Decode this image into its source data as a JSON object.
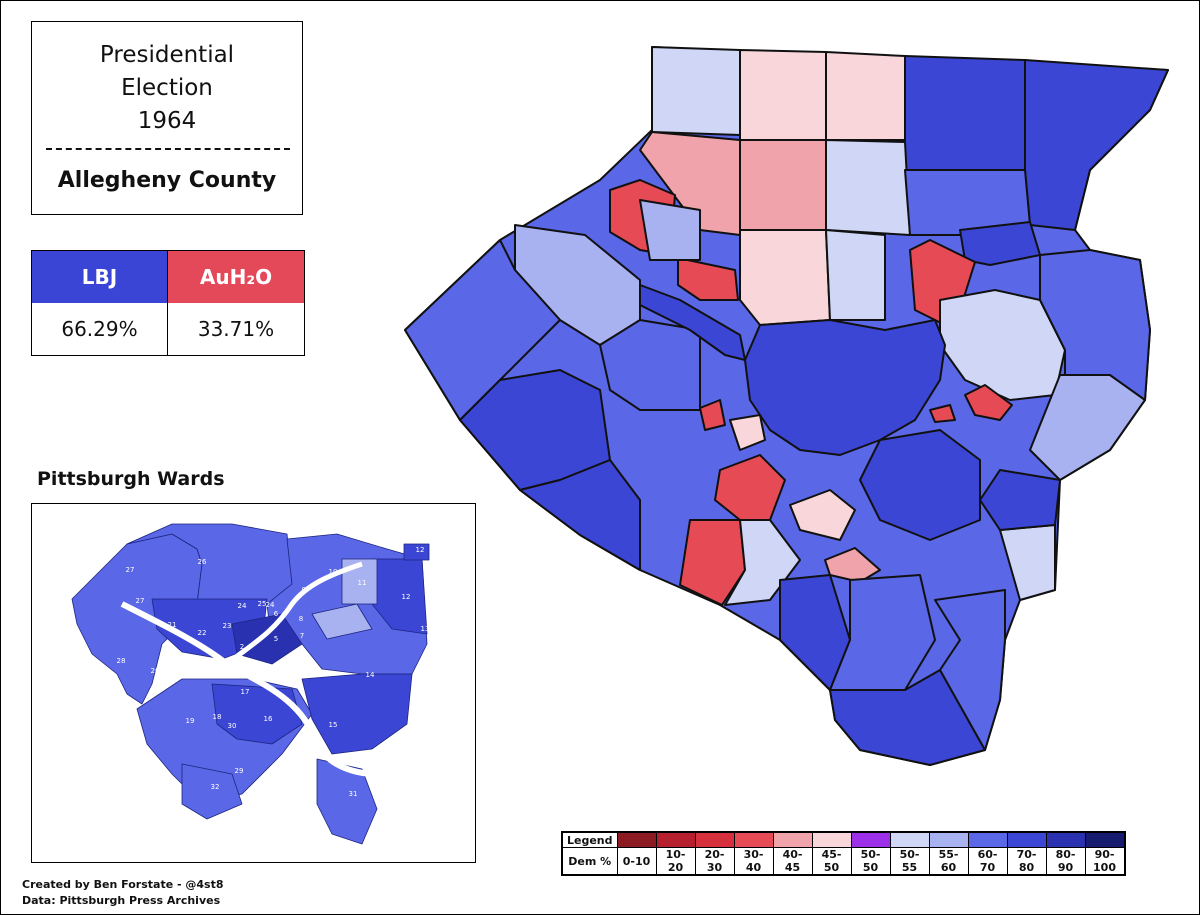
{
  "title": {
    "line1": "Presidential",
    "line2": "Election",
    "line3": "1964",
    "county": "Allegheny County"
  },
  "results": {
    "dem": {
      "label": "LBJ",
      "pct": "66.29%",
      "color": "#3a45d6"
    },
    "rep": {
      "label": "AuH₂O",
      "pct": "33.71%",
      "color": "#e4495a"
    }
  },
  "inset": {
    "title": "Pittsburgh Wards",
    "ward_labels": [
      "1",
      "2",
      "3",
      "4",
      "5",
      "6",
      "7",
      "8",
      "9",
      "10",
      "11",
      "12",
      "12",
      "13",
      "14",
      "15",
      "16",
      "17",
      "18",
      "19",
      "20",
      "21",
      "22",
      "23",
      "24",
      "24",
      "25",
      "26",
      "27",
      "27",
      "28",
      "29",
      "30",
      "31",
      "32"
    ]
  },
  "legend": {
    "title": "Legend",
    "row_label": "Dem %",
    "bins": [
      {
        "label": "0-10",
        "color": "#8b1a22"
      },
      {
        "label": "10-20",
        "color": "#b51f2e"
      },
      {
        "label": "20-30",
        "color": "#d6303d"
      },
      {
        "label": "30-40",
        "color": "#e64b55"
      },
      {
        "label": "40-45",
        "color": "#f0a3aa"
      },
      {
        "label": "45-50",
        "color": "#f8d6da"
      },
      {
        "label": "50-50",
        "color": "#9b30e8"
      },
      {
        "label": "50-55",
        "color": "#cfd6f6"
      },
      {
        "label": "55-60",
        "color": "#a9b2f0"
      },
      {
        "label": "60-70",
        "color": "#5a67e6"
      },
      {
        "label": "70-80",
        "color": "#3c46d4"
      },
      {
        "label": "80-90",
        "color": "#2a31b0"
      },
      {
        "label": "90-100",
        "color": "#161b70"
      }
    ]
  },
  "credits": {
    "line1": "Created by Ben Forstate - @4st8",
    "line2": "Data: Pittsburgh Press Archives"
  }
}
